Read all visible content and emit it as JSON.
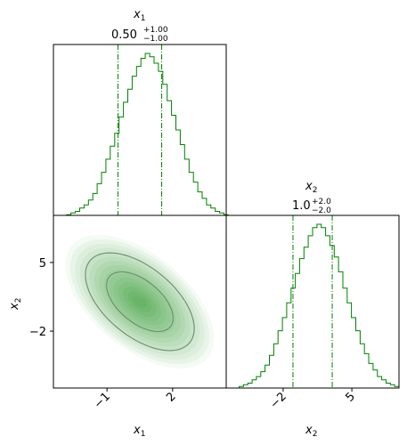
{
  "chart_data": {
    "type": "corner",
    "title_x1": {
      "var": "x",
      "sub": "1",
      "median": "0.50",
      "plus": "+1.00",
      "minus": "−1.00"
    },
    "title_x2": {
      "var": "x",
      "sub": "2",
      "median": "1.0",
      "plus": "+2.0",
      "minus": "−2.0"
    },
    "axis_x1": {
      "range": [
        -3.45,
        4.45
      ],
      "ticks": [
        -1,
        2
      ],
      "tick_labels": [
        "−1",
        "2"
      ],
      "label": "x",
      "label_sub": "1"
    },
    "axis_x2": {
      "range": [
        -7.8,
        9.8
      ],
      "ticks": [
        -2,
        5
      ],
      "tick_labels": [
        "−2",
        "5"
      ],
      "label": "x",
      "label_sub": "2"
    },
    "quantiles_x1": [
      -0.5,
      0.5,
      1.5
    ],
    "quantiles_x2": [
      -1.0,
      1.0,
      3.0
    ],
    "shown_quantile_lines": [
      "lower",
      "upper"
    ],
    "colors": {
      "line": "#008000",
      "contour": "#6d8c6d",
      "fill": "#008000"
    },
    "hist_x1": {
      "bin_edges_start": -3.45,
      "bin_width": 0.2,
      "counts": [
        0,
        0,
        0,
        1,
        2,
        3,
        5,
        7,
        10,
        14,
        20,
        27,
        35,
        43,
        51,
        61,
        70,
        78,
        86,
        92,
        97,
        100,
        98,
        94,
        89,
        81,
        71,
        62,
        53,
        44,
        35,
        27,
        21,
        15,
        11,
        7,
        5,
        3,
        2,
        1
      ]
    },
    "hist_x2": {
      "bin_edges_start": -7.8,
      "bin_width": 0.44,
      "counts": [
        0,
        0,
        0,
        1,
        2,
        3,
        5,
        7,
        10,
        14,
        20,
        27,
        35,
        43,
        52,
        61,
        70,
        79,
        86,
        93,
        98,
        100,
        98,
        93,
        87,
        80,
        71,
        61,
        52,
        43,
        35,
        27,
        21,
        15,
        11,
        7,
        5,
        3,
        2,
        1
      ]
    },
    "density_2d": {
      "mean": [
        0.5,
        1.0
      ],
      "std": [
        1.0,
        2.0
      ],
      "correlation": -0.55,
      "contour_levels_sigma": [
        1,
        2
      ]
    }
  }
}
